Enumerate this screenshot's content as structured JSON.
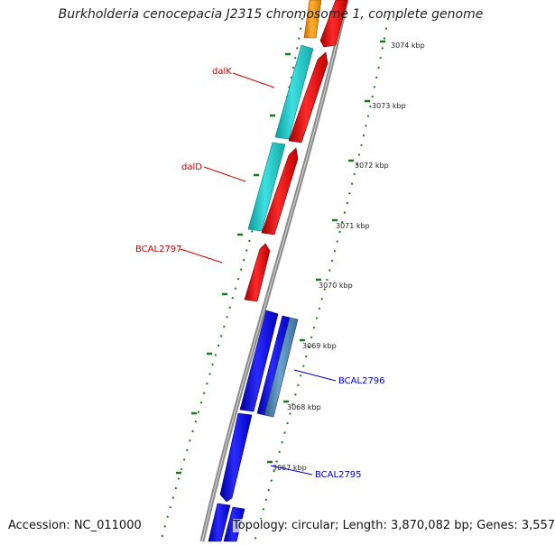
{
  "title": "Burkholderia cenocepacia J2315 chromosome 1, complete genome",
  "accession": "Accession: NC_011000",
  "summary": "Topology: circular; Length: 3,870,082 bp; Genes: 3,557",
  "colors": {
    "background": "#ffffff",
    "backbone": "#8c8c8c",
    "tick": "#1a7a1a",
    "gene_red": "#ff0000",
    "gene_cyan": "#20c8c8",
    "gene_orange": "#ff9a00",
    "gene_blue": "#0000ff",
    "gene_steelblue": "#4682b4",
    "label_red": "#cc0000",
    "label_blue": "#0000cc"
  },
  "kbp_ticks": [
    "3074 kbp",
    "3073 kbp",
    "3072 kbp",
    "3071 kbp",
    "3070 kbp",
    "3069 kbp",
    "3068 kbp",
    "3067 kbp"
  ],
  "gene_labels": [
    {
      "text": "dalK",
      "color": "red"
    },
    {
      "text": "dalD",
      "color": "red"
    },
    {
      "text": "BCAL2797",
      "color": "red"
    },
    {
      "text": "BCAL2796",
      "color": "blue"
    },
    {
      "text": "BCAL2795",
      "color": "blue"
    }
  ]
}
